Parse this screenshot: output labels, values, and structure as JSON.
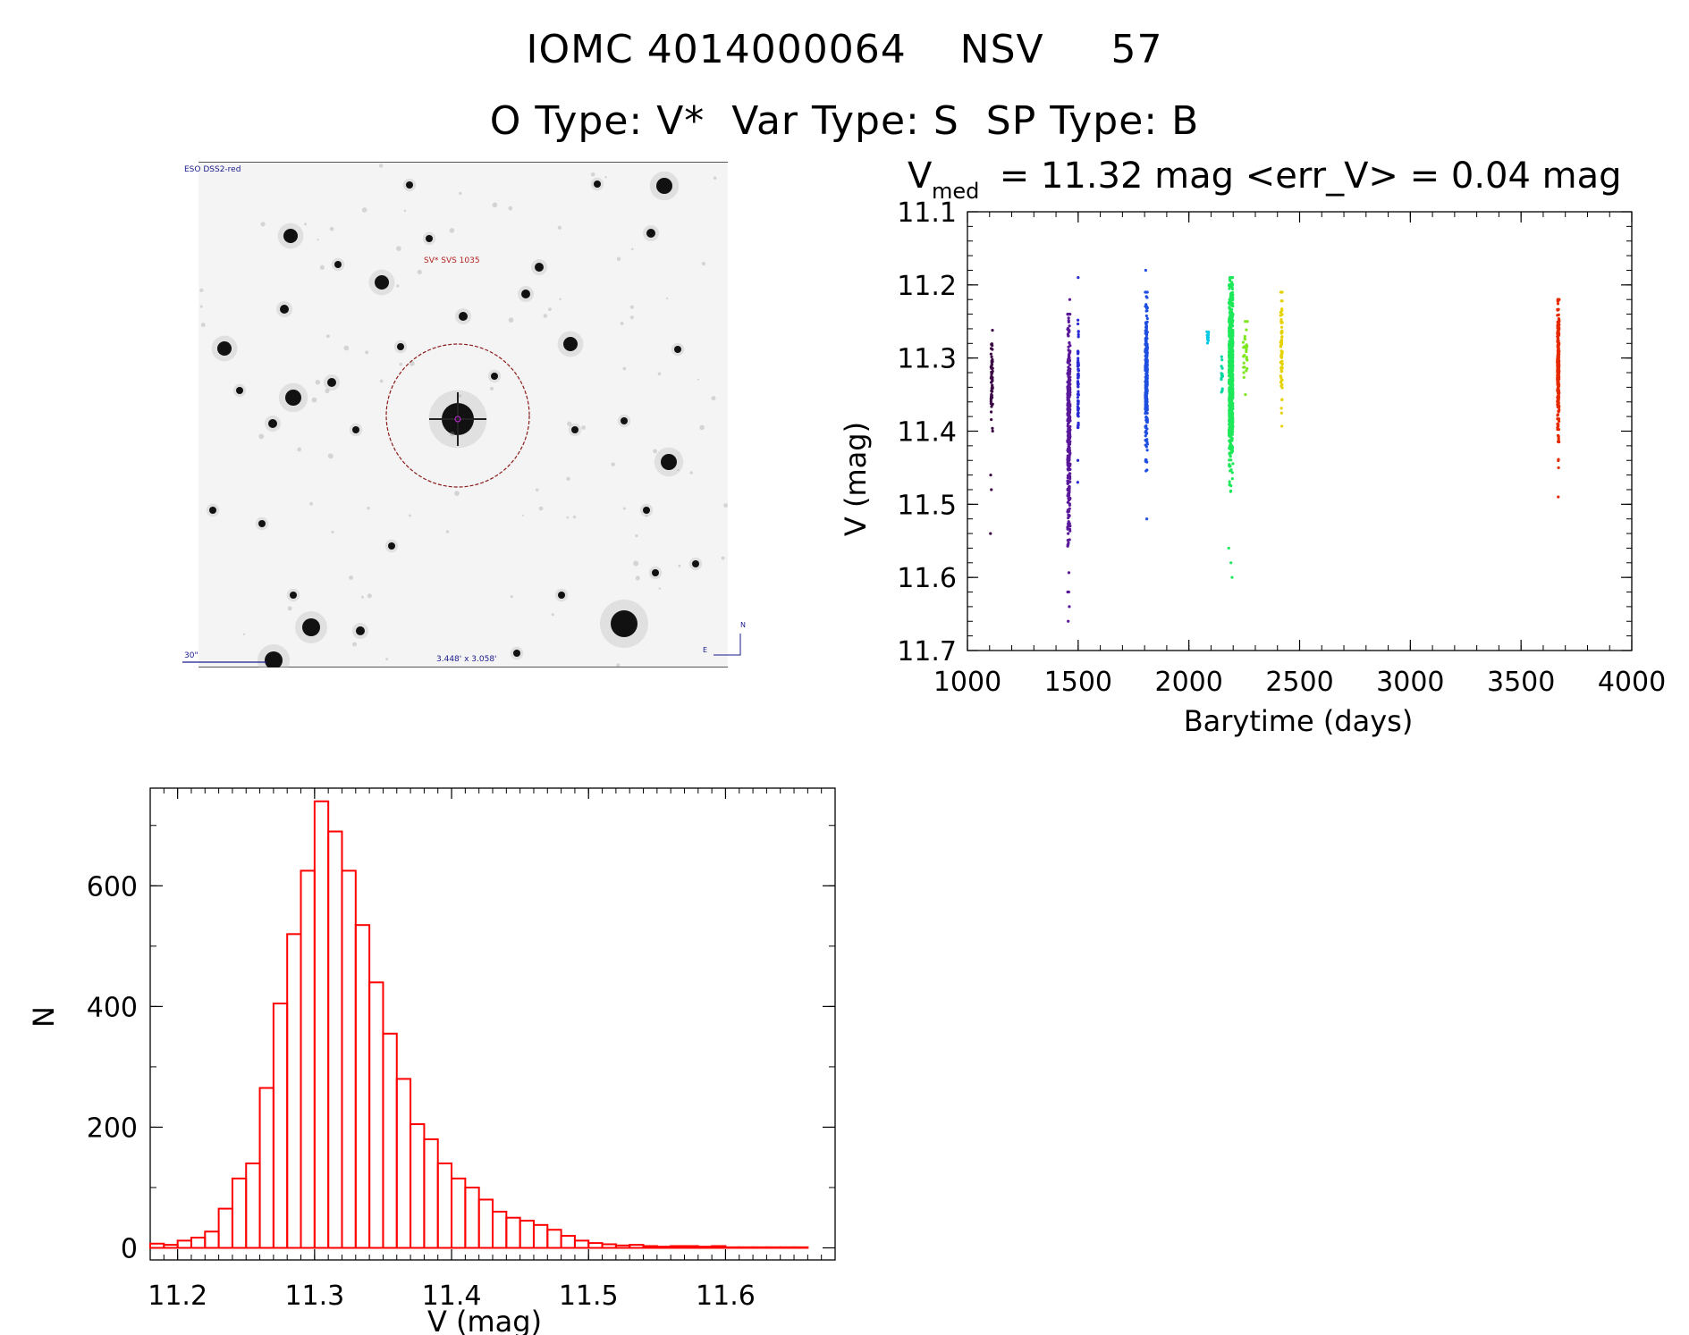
{
  "title": {
    "line1": "IOMC 4014000064    NSV     57",
    "line2": "O Type: V*  Var Type: S  SP Type: B"
  },
  "finder": {
    "survey_label": "ESO DSS2-red",
    "target_label": "SV* SVS 1035",
    "scale_label": "30\"",
    "size_label": "3.448' x 3.058'",
    "compass_n": "N",
    "compass_e": "E",
    "colors": {
      "background": "#f4f4f4",
      "circle": "#8b1a1a",
      "text_blue": "#1a1a8c",
      "text_red": "#b22222"
    }
  },
  "lightcurve": {
    "title_v": "V",
    "title_sub": "med",
    "title_rest": " = 11.32 mag <err_V> = 0.04 mag"
  },
  "chart_data": [
    {
      "type": "scatter",
      "xlabel": "Barytime (days)",
      "ylabel": "V (mag)",
      "xlim": [
        1000,
        4000
      ],
      "ylim": [
        11.7,
        11.1
      ],
      "y_inverted": true,
      "xticks": [
        "1000",
        "1500",
        "2000",
        "2500",
        "3000",
        "3500",
        "4000"
      ],
      "yticks": [
        "11.1",
        "11.2",
        "11.3",
        "11.4",
        "11.5",
        "11.6",
        "11.7"
      ],
      "clusters": [
        {
          "x_center": 1110,
          "x_spread": 8,
          "y_min": 11.26,
          "y_max": 11.4,
          "y_center": 11.33,
          "points": 60,
          "outliers": [
            [
              1105,
              11.46
            ],
            [
              1108,
              11.48
            ],
            [
              1104,
              11.54
            ]
          ],
          "color": "#3b0a45"
        },
        {
          "x_center": 1458,
          "x_spread": 12,
          "y_min": 11.24,
          "y_max": 11.62,
          "y_center": 11.4,
          "points": 320,
          "outliers": [
            [
              1455,
              11.66
            ],
            [
              1460,
              11.64
            ],
            [
              1462,
              11.22
            ]
          ],
          "color": "#5a189a"
        },
        {
          "x_center": 1500,
          "x_spread": 4,
          "y_min": 11.24,
          "y_max": 11.44,
          "y_center": 11.33,
          "points": 80,
          "outliers": [
            [
              1500,
              11.19
            ],
            [
              1498,
              11.47
            ]
          ],
          "color": "#2b2bd4"
        },
        {
          "x_center": 1808,
          "x_spread": 10,
          "y_min": 11.21,
          "y_max": 11.46,
          "y_center": 11.32,
          "points": 260,
          "outliers": [
            [
              1805,
              11.18
            ],
            [
              1810,
              11.52
            ]
          ],
          "color": "#1f4fe0"
        },
        {
          "x_center": 2085,
          "x_spread": 8,
          "y_min": 11.26,
          "y_max": 11.29,
          "y_center": 11.27,
          "points": 12,
          "outliers": [],
          "color": "#00c8e6"
        },
        {
          "x_center": 2150,
          "x_spread": 8,
          "y_min": 11.28,
          "y_max": 11.36,
          "y_center": 11.32,
          "points": 14,
          "outliers": [],
          "color": "#00d6a0"
        },
        {
          "x_center": 2190,
          "x_spread": 18,
          "y_min": 11.19,
          "y_max": 11.5,
          "y_center": 11.32,
          "points": 700,
          "outliers": [
            [
              2180,
              11.56
            ],
            [
              2195,
              11.6
            ],
            [
              2190,
              11.58
            ]
          ],
          "color": "#1ee85a"
        },
        {
          "x_center": 2255,
          "x_spread": 20,
          "y_min": 11.25,
          "y_max": 11.35,
          "y_center": 11.29,
          "points": 30,
          "outliers": [],
          "color": "#7de81e"
        },
        {
          "x_center": 2418,
          "x_spread": 8,
          "y_min": 11.21,
          "y_max": 11.4,
          "y_center": 11.29,
          "points": 70,
          "outliers": [],
          "color": "#e6d200"
        },
        {
          "x_center": 3668,
          "x_spread": 8,
          "y_min": 11.22,
          "y_max": 11.45,
          "y_center": 11.32,
          "points": 260,
          "outliers": [
            [
              3668,
              11.49
            ]
          ],
          "color": "#e62a00"
        }
      ]
    },
    {
      "type": "bar",
      "style": "histogram",
      "xlabel": "V (mag)",
      "ylabel": "N",
      "xlim": [
        11.18,
        11.68
      ],
      "ylim": [
        0,
        750
      ],
      "xticks": [
        "11.2",
        "11.3",
        "11.4",
        "11.5",
        "11.6"
      ],
      "yticks": [
        "0",
        "200",
        "400",
        "600"
      ],
      "bin_width": 0.01,
      "bin_start": 11.18,
      "values": [
        7,
        5,
        12,
        17,
        27,
        65,
        115,
        140,
        265,
        405,
        520,
        625,
        740,
        690,
        625,
        535,
        440,
        355,
        280,
        205,
        180,
        140,
        115,
        100,
        80,
        60,
        50,
        45,
        38,
        30,
        20,
        12,
        8,
        6,
        4,
        5,
        3,
        2,
        3,
        3,
        2,
        3,
        1,
        1,
        1,
        1,
        1,
        1,
        0,
        0
      ],
      "color": "#ff0000"
    }
  ]
}
